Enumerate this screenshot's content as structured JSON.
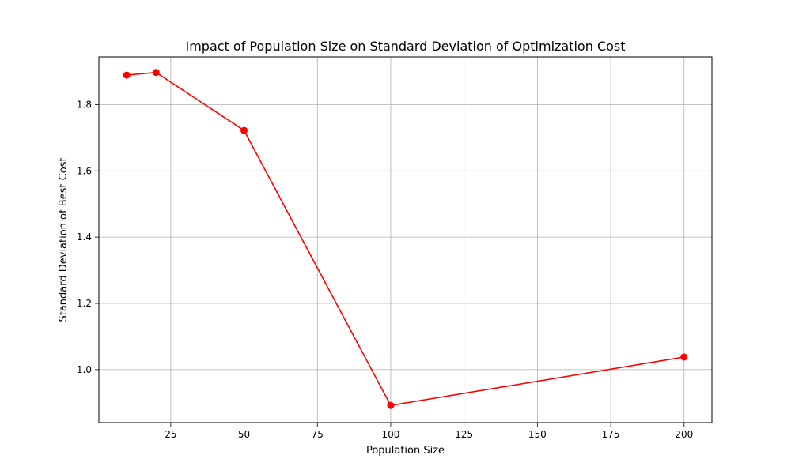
{
  "chart_data": {
    "type": "line",
    "title": "Impact of Population Size on Standard Deviation of Optimization Cost",
    "xlabel": "Population Size",
    "ylabel": "Standard Deviation of Best Cost",
    "x": [
      10,
      20,
      50,
      100,
      200
    ],
    "series": [
      {
        "values": [
          1.889,
          1.897,
          1.722,
          0.892,
          1.038
        ],
        "color": "#ff0000",
        "marker": "circle"
      }
    ],
    "xlim": [
      0.5,
      209.5
    ],
    "ylim": [
      0.84,
      1.944
    ],
    "xticks": [
      25,
      50,
      75,
      100,
      125,
      150,
      175,
      200
    ],
    "yticks": [
      1.0,
      1.2,
      1.4,
      1.6,
      1.8
    ],
    "xtick_labels": [
      "25",
      "50",
      "75",
      "100",
      "125",
      "150",
      "175",
      "200"
    ],
    "ytick_labels": [
      "1.0",
      "1.2",
      "1.4",
      "1.6",
      "1.8"
    ],
    "grid": true,
    "legend": false
  }
}
